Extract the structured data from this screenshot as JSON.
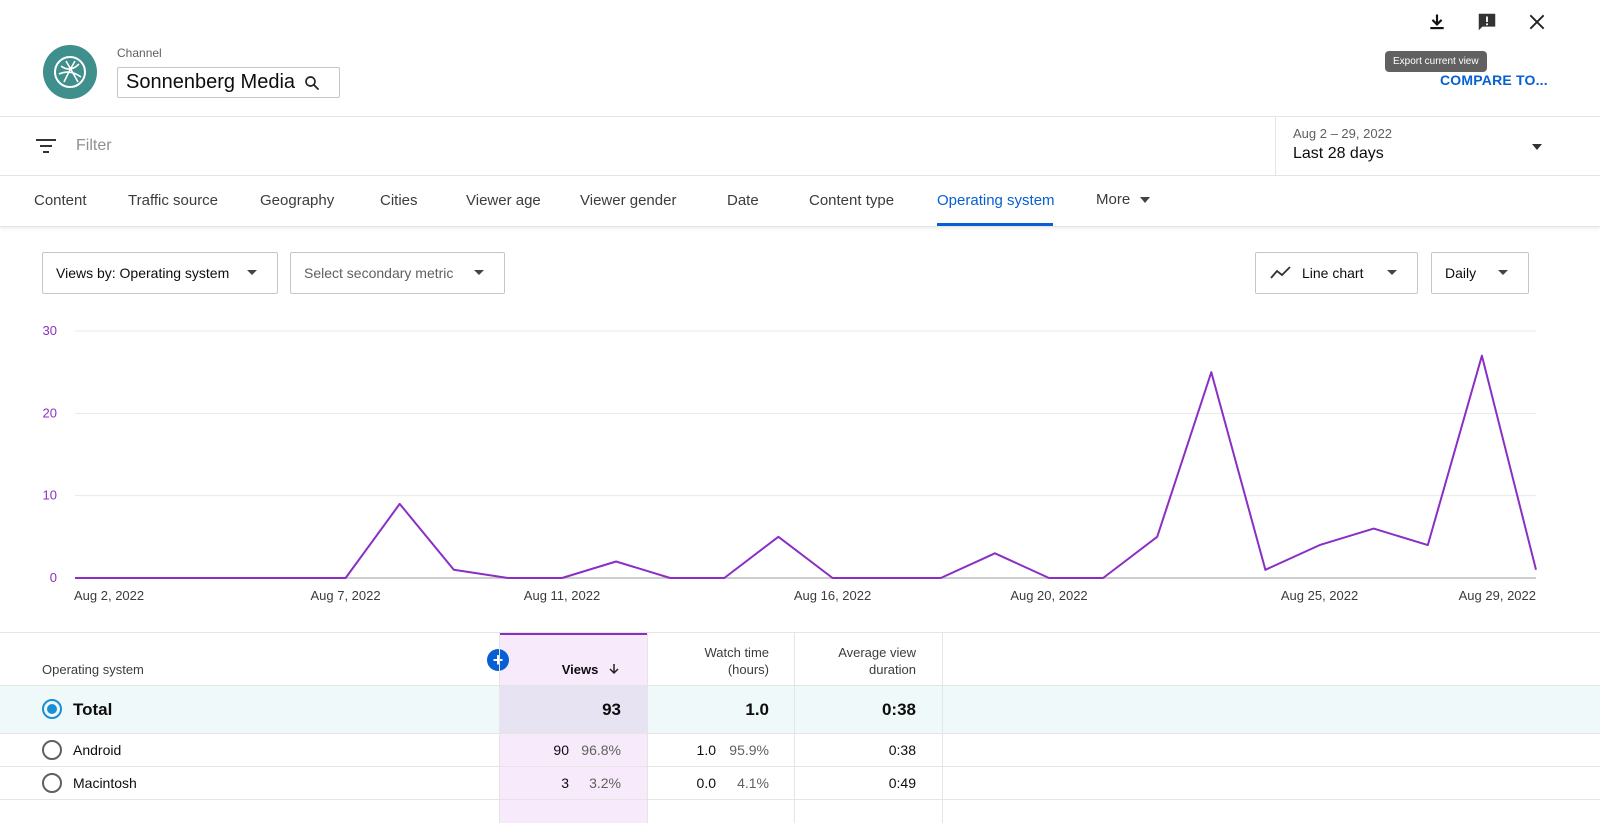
{
  "header": {
    "channel_label": "Channel",
    "channel_name": "Sonnenberg Media",
    "tooltip": "Export current view",
    "compare_label": "COMPARE TO..."
  },
  "filter": {
    "placeholder": "Filter"
  },
  "date_range": {
    "range": "Aug 2 – 29, 2022",
    "period": "Last 28 days"
  },
  "tabs": [
    {
      "label": "Content"
    },
    {
      "label": "Traffic source"
    },
    {
      "label": "Geography"
    },
    {
      "label": "Cities"
    },
    {
      "label": "Viewer age"
    },
    {
      "label": "Viewer gender"
    },
    {
      "label": "Date"
    },
    {
      "label": "Content type"
    },
    {
      "label": "Operating system",
      "active": true
    },
    {
      "label": "More"
    }
  ],
  "controls": {
    "primary_metric": "Views by: Operating system",
    "secondary_metric": "Select secondary metric",
    "chart_type": "Line chart",
    "granularity": "Daily"
  },
  "chart_data": {
    "type": "line",
    "color": "#8a2fc5",
    "ylim": [
      0,
      30
    ],
    "yticks": [
      "0",
      "10",
      "20",
      "30"
    ],
    "xtick_labels": [
      "Aug 2, 2022",
      "Aug 7, 2022",
      "Aug 11, 2022",
      "Aug 16, 2022",
      "Aug 20, 2022",
      "Aug 25, 2022",
      "Aug 29, 2022"
    ],
    "x": [
      "Aug 2",
      "Aug 3",
      "Aug 4",
      "Aug 5",
      "Aug 6",
      "Aug 7",
      "Aug 8",
      "Aug 9",
      "Aug 10",
      "Aug 11",
      "Aug 12",
      "Aug 13",
      "Aug 14",
      "Aug 15",
      "Aug 16",
      "Aug 17",
      "Aug 18",
      "Aug 19",
      "Aug 20",
      "Aug 21",
      "Aug 22",
      "Aug 23",
      "Aug 24",
      "Aug 25",
      "Aug 26",
      "Aug 27",
      "Aug 28",
      "Aug 29"
    ],
    "series": [
      {
        "values": [
          0,
          0,
          0,
          0,
          0,
          0,
          9,
          1,
          0,
          0,
          2,
          0,
          0,
          5,
          0,
          0,
          0,
          3,
          0,
          0,
          5,
          25,
          1,
          4,
          6,
          4,
          27,
          1
        ]
      }
    ]
  },
  "table": {
    "headers": {
      "dimension": "Operating system",
      "views": "Views",
      "watch_time_1": "Watch time",
      "watch_time_2": "(hours)",
      "avg_duration_1": "Average view",
      "avg_duration_2": "duration"
    },
    "total": {
      "label": "Total",
      "views": "93",
      "watch_time": "1.0",
      "avg_duration": "0:38"
    },
    "rows": [
      {
        "label": "Android",
        "views": "90",
        "views_pct": "96.8%",
        "watch_time": "1.0",
        "watch_pct": "95.9%",
        "avg_duration": "0:38"
      },
      {
        "label": "Macintosh",
        "views": "3",
        "views_pct": "3.2%",
        "watch_time": "0.0",
        "watch_pct": "4.1%",
        "avg_duration": "0:49"
      }
    ]
  }
}
